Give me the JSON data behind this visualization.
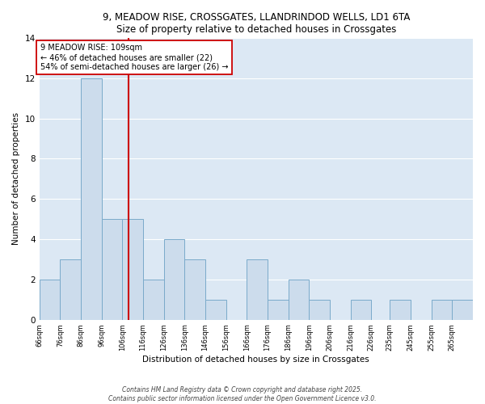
{
  "title": "9, MEADOW RISE, CROSSGATES, LLANDRINDOD WELLS, LD1 6TA",
  "subtitle": "Size of property relative to detached houses in Crossgates",
  "xlabel": "Distribution of detached houses by size in Crossgates",
  "ylabel": "Number of detached properties",
  "bins_left": [
    66,
    76,
    86,
    96,
    106,
    116,
    126,
    136,
    146,
    156,
    166,
    176,
    186,
    196,
    206,
    216,
    226,
    235,
    245,
    255,
    265
  ],
  "bin_width": 10,
  "counts": [
    2,
    3,
    12,
    5,
    5,
    2,
    4,
    3,
    1,
    0,
    3,
    1,
    2,
    1,
    0,
    1,
    0,
    1,
    0,
    1,
    1
  ],
  "bar_color": "#ccdcec",
  "bar_edge_color": "#7aaaca",
  "vline_x": 109,
  "vline_color": "#cc0000",
  "annotation_text": "9 MEADOW RISE: 109sqm\n← 46% of detached houses are smaller (22)\n54% of semi-detached houses are larger (26) →",
  "annotation_box_color": "white",
  "annotation_box_edge": "#cc0000",
  "ylim": [
    0,
    14
  ],
  "yticks": [
    0,
    2,
    4,
    6,
    8,
    10,
    12,
    14
  ],
  "background_color": "#dce8f4",
  "grid_color": "white",
  "footer_line1": "Contains HM Land Registry data © Crown copyright and database right 2025.",
  "footer_line2": "Contains public sector information licensed under the Open Government Licence v3.0.",
  "tick_labels": [
    "66sqm",
    "76sqm",
    "86sqm",
    "96sqm",
    "106sqm",
    "116sqm",
    "126sqm",
    "136sqm",
    "146sqm",
    "156sqm",
    "166sqm",
    "176sqm",
    "186sqm",
    "196sqm",
    "206sqm",
    "216sqm",
    "226sqm",
    "235sqm",
    "245sqm",
    "255sqm",
    "265sqm"
  ],
  "figsize": [
    6.0,
    5.0
  ],
  "dpi": 100
}
